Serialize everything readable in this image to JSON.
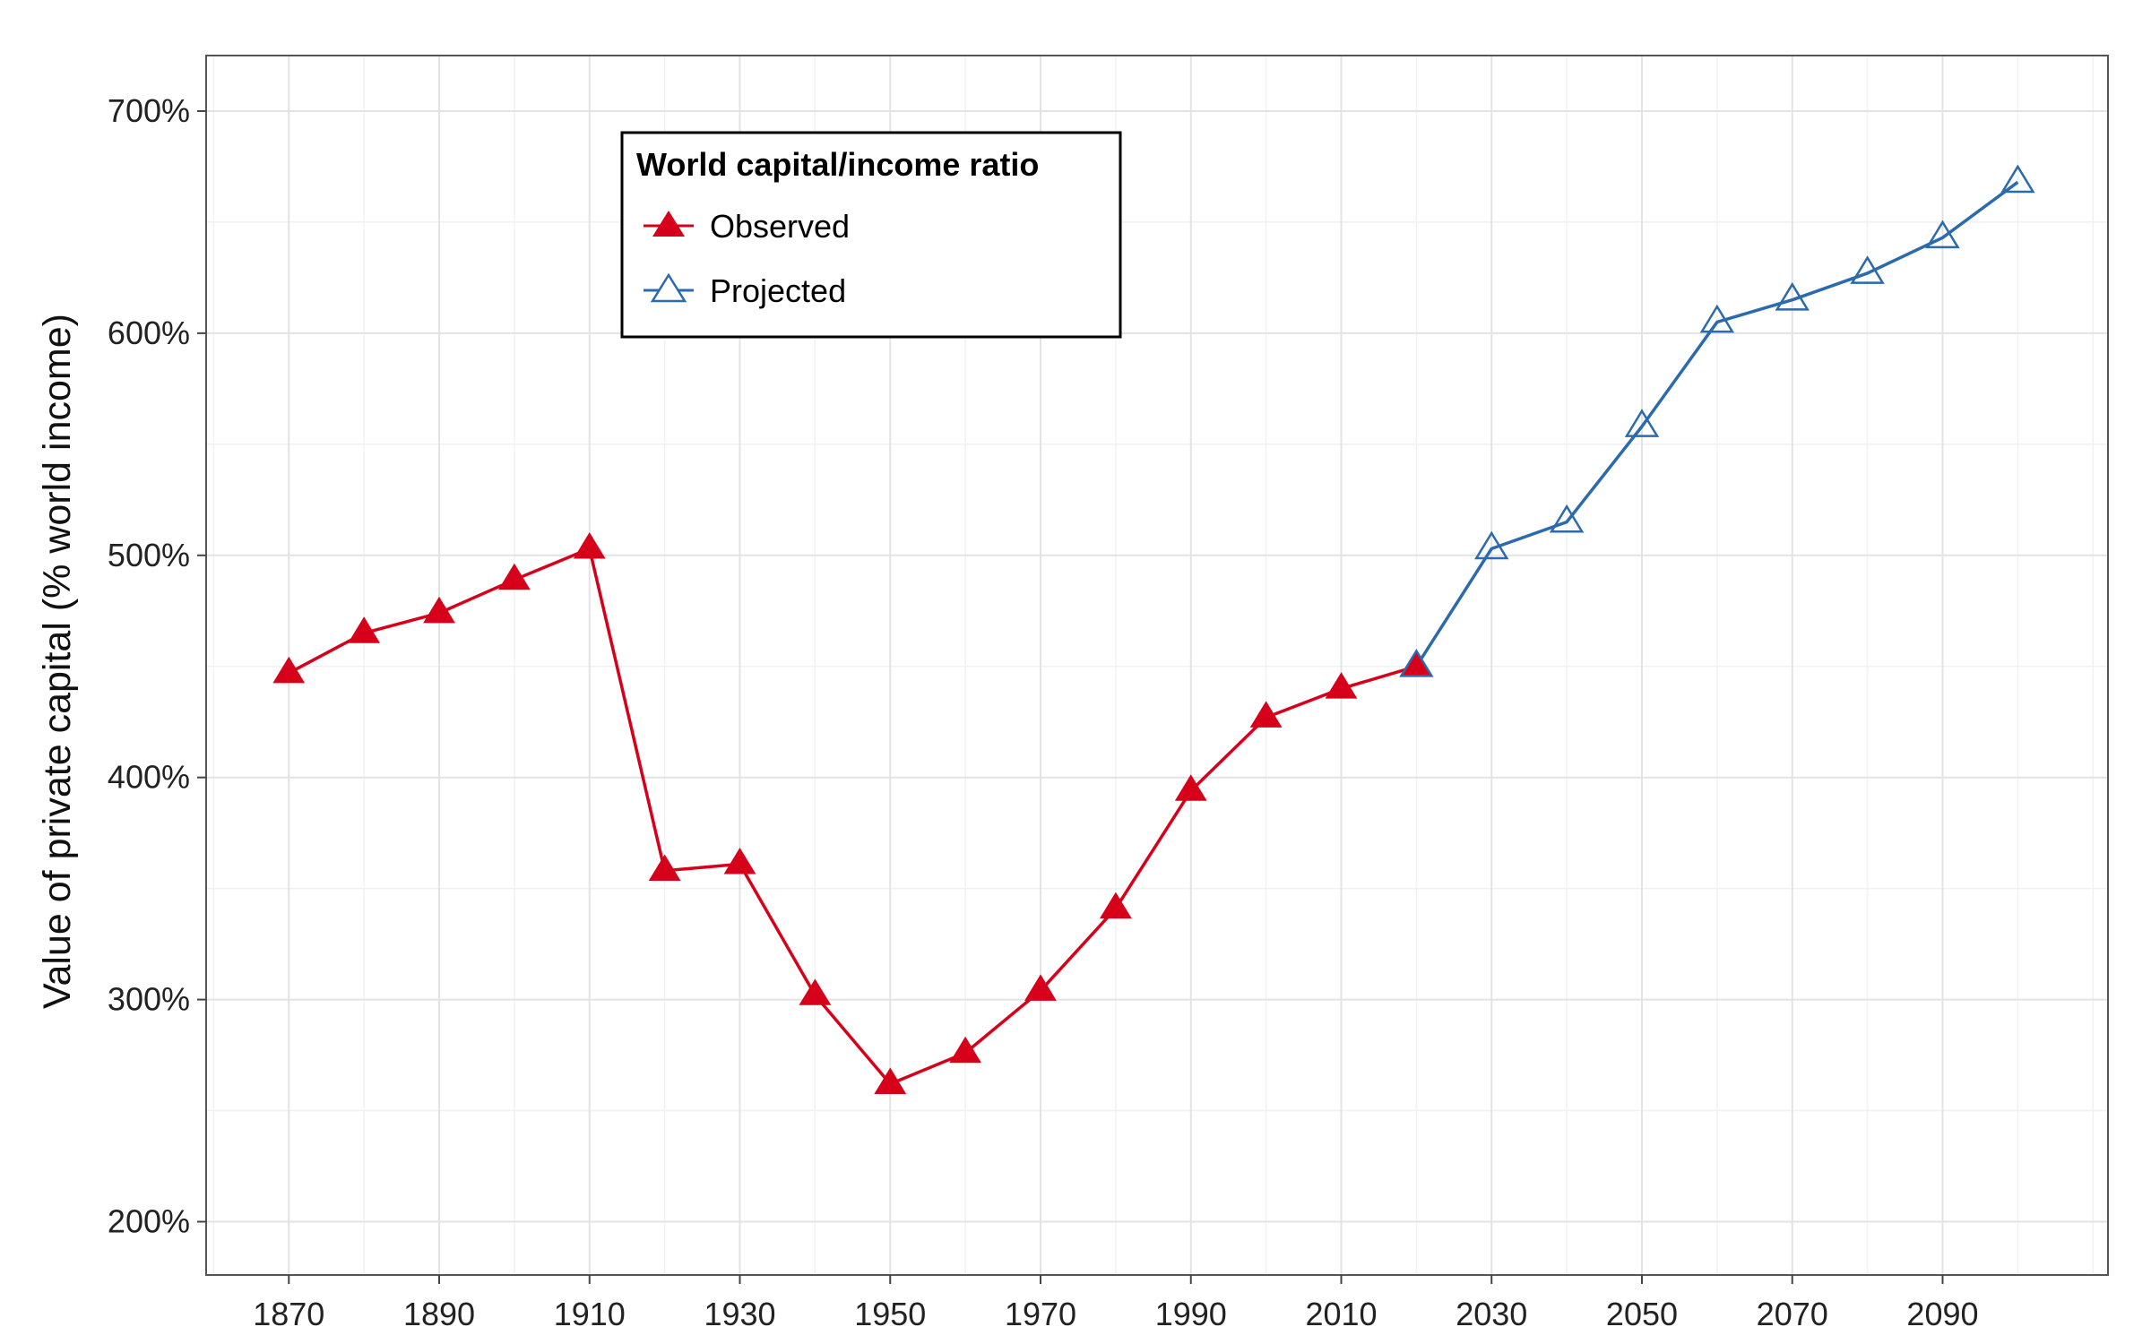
{
  "chart_data": {
    "type": "line",
    "title": "",
    "xlabel": "",
    "ylabel": "Value of private capital (% world income)",
    "xlim": [
      1859,
      2112
    ],
    "ylim": [
      176,
      725
    ],
    "x_ticks": [
      1870,
      1890,
      1910,
      1930,
      1950,
      1970,
      1990,
      2010,
      2030,
      2050,
      2070,
      2090
    ],
    "x_tick_labels": [
      "1870",
      "1890",
      "1910",
      "1930",
      "1950",
      "1970",
      "1990",
      "2010",
      "2030",
      "2050",
      "2070",
      "2090"
    ],
    "y_ticks": [
      200,
      300,
      400,
      500,
      600,
      700
    ],
    "y_tick_labels": [
      "200%",
      "300%",
      "400%",
      "500%",
      "600%",
      "700%"
    ],
    "grid": true,
    "legend": {
      "title": "World capital/income ratio",
      "position": "top-left"
    },
    "series": [
      {
        "name": "Observed",
        "color": "#d7001a",
        "marker": "filled-triangle",
        "x": [
          1870,
          1880,
          1890,
          1900,
          1910,
          1920,
          1930,
          1940,
          1950,
          1960,
          1970,
          1980,
          1990,
          2000,
          2010,
          2020
        ],
        "y": [
          447,
          465,
          474,
          489,
          503,
          358,
          361,
          302,
          262,
          276,
          304,
          341,
          394,
          427,
          440,
          450
        ]
      },
      {
        "name": "Projected",
        "color": "#2b6aad",
        "marker": "open-triangle",
        "x": [
          2020,
          2030,
          2040,
          2050,
          2060,
          2070,
          2080,
          2090,
          2100
        ],
        "y": [
          450,
          503,
          515,
          558,
          605,
          615,
          627,
          643,
          668
        ]
      }
    ]
  }
}
